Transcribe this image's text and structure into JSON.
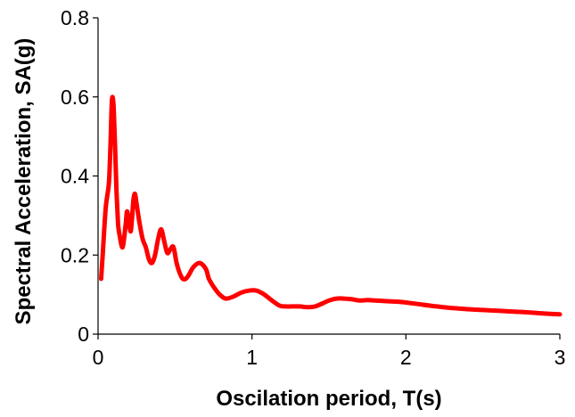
{
  "chart_data": {
    "type": "line",
    "title": "",
    "xlabel": "Oscilation period, T(s)",
    "ylabel": "Spectral Acceleration, SA(g)",
    "xlim": [
      0,
      3
    ],
    "ylim": [
      0,
      0.8
    ],
    "x_ticks": [
      "0",
      "1",
      "2",
      "3"
    ],
    "y_ticks": [
      "0",
      "0.2",
      "0.4",
      "0.6",
      "0.8"
    ],
    "x_tick_values": [
      0,
      1,
      2,
      3
    ],
    "y_tick_values": [
      0,
      0.2,
      0.4,
      0.6,
      0.8
    ],
    "grid": false,
    "legend": "none",
    "series": [
      {
        "color": "#ff0000",
        "x": [
          0.02,
          0.03,
          0.05,
          0.07,
          0.08,
          0.09,
          0.1,
          0.11,
          0.12,
          0.13,
          0.14,
          0.16,
          0.18,
          0.19,
          0.21,
          0.22,
          0.23,
          0.24,
          0.25,
          0.27,
          0.29,
          0.31,
          0.33,
          0.35,
          0.37,
          0.39,
          0.41,
          0.43,
          0.45,
          0.47,
          0.49,
          0.51,
          0.53,
          0.55,
          0.57,
          0.59,
          0.62,
          0.66,
          0.7,
          0.72,
          0.75,
          0.79,
          0.83,
          0.88,
          0.93,
          0.98,
          1.03,
          1.08,
          1.13,
          1.18,
          1.22,
          1.26,
          1.31,
          1.36,
          1.41,
          1.46,
          1.5,
          1.55,
          1.6,
          1.65,
          1.7,
          1.75,
          1.8,
          1.85,
          1.9,
          1.95,
          2.0,
          2.1,
          2.2,
          2.3,
          2.4,
          2.5,
          2.6,
          2.7,
          2.8,
          2.9,
          3.0
        ],
        "y": [
          0.14,
          0.2,
          0.32,
          0.38,
          0.47,
          0.59,
          0.58,
          0.48,
          0.36,
          0.28,
          0.25,
          0.22,
          0.28,
          0.31,
          0.26,
          0.29,
          0.34,
          0.355,
          0.33,
          0.28,
          0.24,
          0.22,
          0.19,
          0.18,
          0.2,
          0.24,
          0.265,
          0.235,
          0.205,
          0.215,
          0.22,
          0.18,
          0.155,
          0.14,
          0.14,
          0.15,
          0.17,
          0.18,
          0.165,
          0.14,
          0.12,
          0.1,
          0.09,
          0.095,
          0.105,
          0.11,
          0.11,
          0.1,
          0.085,
          0.072,
          0.07,
          0.07,
          0.07,
          0.068,
          0.07,
          0.078,
          0.085,
          0.09,
          0.09,
          0.088,
          0.085,
          0.086,
          0.085,
          0.084,
          0.083,
          0.082,
          0.08,
          0.075,
          0.07,
          0.066,
          0.063,
          0.061,
          0.059,
          0.057,
          0.055,
          0.052,
          0.05
        ]
      }
    ]
  }
}
